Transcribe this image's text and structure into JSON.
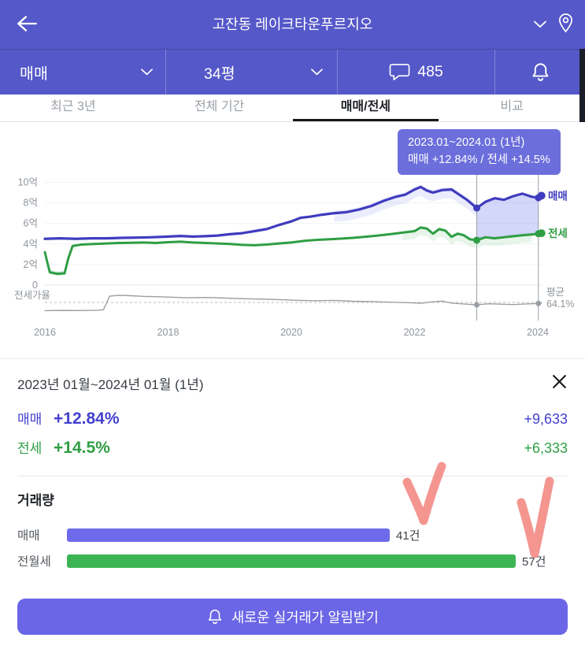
{
  "colors": {
    "header_bg": "#5558C8",
    "tooltip_bg": "#6B6EDB",
    "sale_text": "#4341CE",
    "jeonse_text": "#2F9E44",
    "sale_bar": "#6E6AEC",
    "jeonse_bar": "#3CB454",
    "cta_bg": "#6B66E6",
    "annotation": "#F2837D"
  },
  "header": {
    "title": "고잔동 레이크타운푸르지오"
  },
  "toolbar": {
    "trade_type": "매매",
    "area": "34평",
    "comment_count": "485"
  },
  "tabs": [
    {
      "label": "최근 3년",
      "active": false
    },
    {
      "label": "전체 기간",
      "active": false
    },
    {
      "label": "매매/전세",
      "active": true
    },
    {
      "label": "비교",
      "active": false
    }
  ],
  "tooltip": {
    "line1": "2023.01~2024.01 (1년)",
    "line2": "매매 +12.84%  /  전세 +14.5%"
  },
  "chart_data": {
    "type": "line",
    "xlim": [
      2016,
      2024.1
    ],
    "ylim": [
      0,
      10.5
    ],
    "x_ticks": [
      2016,
      2018,
      2020,
      2022,
      2024
    ],
    "y_ticks": [
      {
        "v": 10,
        "label": "10억"
      },
      {
        "v": 8,
        "label": "8억"
      },
      {
        "v": 6,
        "label": "6억"
      },
      {
        "v": 4,
        "label": "4억"
      },
      {
        "v": 2,
        "label": "2억"
      },
      {
        "v": 0,
        "label": "0"
      }
    ],
    "ratio_axis_label": "전세가율",
    "avg_ratio": 64.1,
    "avg_label": [
      "평균",
      "64.1%"
    ],
    "highlight": {
      "from": 2023.01,
      "to": 2024.01,
      "color": "rgba(108,122,235,0.30)"
    },
    "bands": [
      {
        "series": "매매",
        "from": 2020.7,
        "to": 2023.01,
        "up": 0.25,
        "down": 0.85,
        "color": "rgba(110,125,235,0.14)"
      },
      {
        "series": "전세",
        "from": 2021.8,
        "to": 2023.9,
        "up": 0.2,
        "down": 0.75,
        "color": "rgba(70,180,100,0.13)"
      },
      {
        "series": "전세",
        "from": 2016.02,
        "to": 2016.45,
        "up": 0.25,
        "down": 0.2,
        "color": "rgba(70,180,100,0.2)"
      }
    ],
    "series": [
      {
        "name": "매매",
        "color": "#403CBE",
        "width": 3.2,
        "points": [
          [
            2016.0,
            4.5
          ],
          [
            2016.25,
            4.55
          ],
          [
            2016.5,
            4.5
          ],
          [
            2016.75,
            4.55
          ],
          [
            2017.0,
            4.55
          ],
          [
            2017.25,
            4.6
          ],
          [
            2017.5,
            4.62
          ],
          [
            2017.75,
            4.66
          ],
          [
            2018.0,
            4.72
          ],
          [
            2018.2,
            4.78
          ],
          [
            2018.4,
            4.72
          ],
          [
            2018.6,
            4.76
          ],
          [
            2018.8,
            4.82
          ],
          [
            2019.0,
            4.95
          ],
          [
            2019.2,
            5.05
          ],
          [
            2019.4,
            5.25
          ],
          [
            2019.6,
            5.45
          ],
          [
            2019.8,
            5.85
          ],
          [
            2020.0,
            6.2
          ],
          [
            2020.15,
            6.55
          ],
          [
            2020.3,
            6.65
          ],
          [
            2020.5,
            6.85
          ],
          [
            2020.7,
            7.0
          ],
          [
            2020.9,
            7.1
          ],
          [
            2021.1,
            7.35
          ],
          [
            2021.3,
            7.7
          ],
          [
            2021.5,
            8.2
          ],
          [
            2021.7,
            8.6
          ],
          [
            2021.85,
            8.8
          ],
          [
            2022.0,
            9.3
          ],
          [
            2022.1,
            9.55
          ],
          [
            2022.2,
            9.2
          ],
          [
            2022.3,
            9.0
          ],
          [
            2022.45,
            9.25
          ],
          [
            2022.6,
            9.3
          ],
          [
            2022.7,
            8.9
          ],
          [
            2022.85,
            8.3
          ],
          [
            2023.01,
            7.5
          ],
          [
            2023.15,
            8.1
          ],
          [
            2023.3,
            8.45
          ],
          [
            2023.45,
            8.3
          ],
          [
            2023.6,
            8.65
          ],
          [
            2023.75,
            8.9
          ],
          [
            2023.9,
            8.6
          ],
          [
            2024.01,
            8.5
          ],
          [
            2024.06,
            8.7
          ]
        ]
      },
      {
        "name": "전세",
        "color": "#2F9E44",
        "width": 3,
        "points": [
          [
            2016.0,
            3.2
          ],
          [
            2016.04,
            2.2
          ],
          [
            2016.08,
            1.25
          ],
          [
            2016.2,
            1.1
          ],
          [
            2016.32,
            1.15
          ],
          [
            2016.38,
            2.6
          ],
          [
            2016.45,
            3.8
          ],
          [
            2016.6,
            3.95
          ],
          [
            2016.8,
            4.0
          ],
          [
            2017.0,
            4.05
          ],
          [
            2017.2,
            4.1
          ],
          [
            2017.4,
            4.12
          ],
          [
            2017.6,
            4.15
          ],
          [
            2017.8,
            4.1
          ],
          [
            2018.0,
            4.18
          ],
          [
            2018.2,
            4.22
          ],
          [
            2018.4,
            4.15
          ],
          [
            2018.6,
            4.1
          ],
          [
            2018.8,
            4.05
          ],
          [
            2019.0,
            4.0
          ],
          [
            2019.2,
            3.92
          ],
          [
            2019.4,
            3.88
          ],
          [
            2019.6,
            3.95
          ],
          [
            2019.8,
            4.05
          ],
          [
            2020.0,
            4.15
          ],
          [
            2020.2,
            4.3
          ],
          [
            2020.4,
            4.4
          ],
          [
            2020.6,
            4.45
          ],
          [
            2020.8,
            4.52
          ],
          [
            2021.0,
            4.6
          ],
          [
            2021.2,
            4.7
          ],
          [
            2021.4,
            4.82
          ],
          [
            2021.6,
            4.95
          ],
          [
            2021.8,
            5.1
          ],
          [
            2022.0,
            5.25
          ],
          [
            2022.1,
            5.6
          ],
          [
            2022.2,
            5.5
          ],
          [
            2022.3,
            5.0
          ],
          [
            2022.4,
            5.45
          ],
          [
            2022.5,
            5.3
          ],
          [
            2022.6,
            4.7
          ],
          [
            2022.7,
            5.0
          ],
          [
            2022.8,
            4.85
          ],
          [
            2022.9,
            4.45
          ],
          [
            2023.01,
            4.37
          ],
          [
            2023.15,
            4.65
          ],
          [
            2023.3,
            4.55
          ],
          [
            2023.45,
            4.65
          ],
          [
            2023.6,
            4.75
          ],
          [
            2023.75,
            4.85
          ],
          [
            2023.9,
            4.92
          ],
          [
            2024.01,
            5.0
          ],
          [
            2024.06,
            5.05
          ]
        ]
      },
      {
        "name": "전세가율",
        "color": "#9a9fa4",
        "width": 1.4,
        "axis": "ratio",
        "points": [
          [
            2016.0,
            55.0
          ],
          [
            2016.3,
            55.3
          ],
          [
            2016.6,
            55.1
          ],
          [
            2016.85,
            55.5
          ],
          [
            2016.95,
            56.0
          ],
          [
            2017.05,
            71.0
          ],
          [
            2017.2,
            72.0
          ],
          [
            2017.4,
            71.5
          ],
          [
            2017.6,
            70.8
          ],
          [
            2017.8,
            70.5
          ],
          [
            2018.0,
            70.0
          ],
          [
            2018.3,
            69.3
          ],
          [
            2018.6,
            69.6
          ],
          [
            2018.9,
            69.0
          ],
          [
            2019.2,
            68.3
          ],
          [
            2019.5,
            67.8
          ],
          [
            2019.8,
            67.2
          ],
          [
            2020.1,
            66.4
          ],
          [
            2020.4,
            66.0
          ],
          [
            2020.7,
            66.3
          ],
          [
            2021.0,
            65.4
          ],
          [
            2021.3,
            65.0
          ],
          [
            2021.6,
            64.4
          ],
          [
            2021.9,
            63.8
          ],
          [
            2022.1,
            63.2
          ],
          [
            2022.3,
            64.8
          ],
          [
            2022.45,
            65.6
          ],
          [
            2022.6,
            63.4
          ],
          [
            2022.75,
            62.6
          ],
          [
            2022.9,
            62.0
          ],
          [
            2023.01,
            61.5
          ],
          [
            2023.2,
            62.6
          ],
          [
            2023.4,
            62.2
          ],
          [
            2023.6,
            61.8
          ],
          [
            2023.8,
            62.4
          ],
          [
            2024.01,
            63.0
          ],
          [
            2024.06,
            63.2
          ]
        ]
      }
    ]
  },
  "detail": {
    "period": "2023년 01월~2024년 01월 (1년)",
    "stats": [
      {
        "label": "매매",
        "pct": "+12.84%",
        "amount": "+9,633"
      },
      {
        "label": "전세",
        "pct": "+14.5%",
        "amount": "+6,333"
      }
    ],
    "volume_title": "거래량",
    "bars": [
      {
        "label": "매매",
        "count": 41,
        "count_label": "41건"
      },
      {
        "label": "전월세",
        "count": 57,
        "count_label": "57건"
      }
    ]
  },
  "cta": {
    "label": "새로운 실거래가 알림받기"
  }
}
